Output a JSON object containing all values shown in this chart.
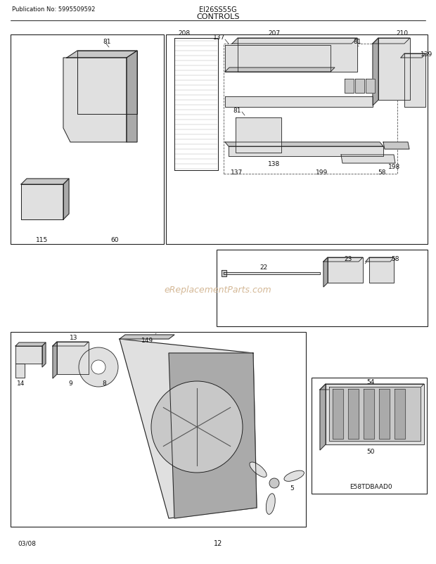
{
  "page_title": "CONTROLS",
  "pub_no": "Publication No: 5995509592",
  "model": "EI26SS55G",
  "page_num": "12",
  "date": "03/08",
  "watermark": "eReplacementParts.com",
  "diagram_label": "E58TDBAAD0",
  "bg_color": "#ffffff",
  "line_color": "#222222",
  "gray1": "#c8c8c8",
  "gray2": "#e0e0e0",
  "gray3": "#aaaaaa",
  "watermark_color": "#d4b896"
}
